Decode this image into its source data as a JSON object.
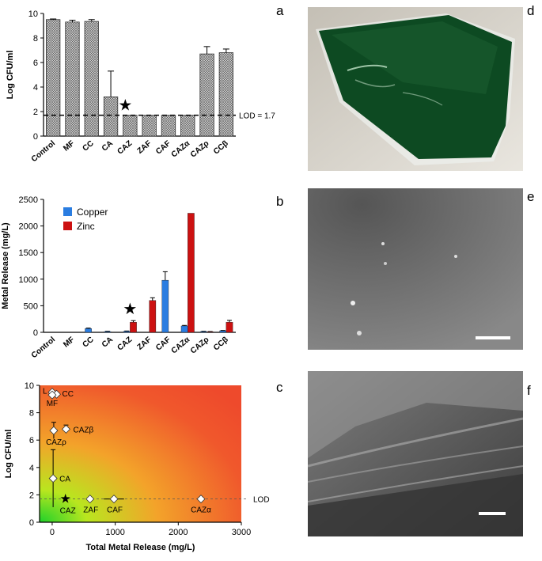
{
  "panel_labels": {
    "a": "a",
    "b": "b",
    "c": "c",
    "d": "d",
    "e": "e",
    "f": "f"
  },
  "colors": {
    "bar_fill": "#c9c9c9",
    "copper": "#2a7de1",
    "zinc": "#cc1111",
    "film_green": "#0d4a22",
    "sem_gray": "#707070"
  },
  "chart_data": [
    {
      "panel": "a",
      "type": "bar",
      "ylabel": "Log CFU/ml",
      "ylim": [
        0,
        10
      ],
      "yticks": [
        "0",
        "2",
        "4",
        "6",
        "8",
        "10"
      ],
      "categories": [
        "Control",
        "MF",
        "CC",
        "CA",
        "CAZ",
        "ZAF",
        "CAF",
        "CAZα",
        "CAZρ",
        "CCβ"
      ],
      "values": [
        9.5,
        9.3,
        9.35,
        3.2,
        1.7,
        1.7,
        1.7,
        1.7,
        6.7,
        6.8
      ],
      "errors": [
        0.05,
        0.15,
        0.15,
        2.1,
        0,
        0,
        0,
        0,
        0.6,
        0.3
      ],
      "lod": 1.7,
      "lod_label": "LOD = 1.7",
      "star_category": "CAZ",
      "star_symbol": "★"
    },
    {
      "panel": "b",
      "type": "bar",
      "ylabel": "Metal Release (mg/L)",
      "ylim": [
        0,
        2500
      ],
      "yticks": [
        "0",
        "500",
        "1000",
        "1500",
        "2000",
        "2500"
      ],
      "categories": [
        "Control",
        "MF",
        "CC",
        "CA",
        "CAZ",
        "ZAF",
        "CAF",
        "CAZα",
        "CAZρ",
        "CCβ"
      ],
      "series": [
        {
          "name": "Copper",
          "color": "#2a7de1",
          "values": [
            0,
            0,
            70,
            15,
            20,
            0,
            980,
            120,
            15,
            30
          ],
          "errors": [
            0,
            0,
            10,
            5,
            5,
            0,
            160,
            10,
            5,
            5
          ]
        },
        {
          "name": "Zinc",
          "color": "#cc1111",
          "values": [
            0,
            0,
            0,
            0,
            190,
            600,
            0,
            2240,
            10,
            190
          ],
          "errors": [
            0,
            0,
            0,
            0,
            30,
            50,
            0,
            0,
            5,
            35
          ]
        }
      ],
      "legend_position": "top-left",
      "star_category": "CAZ",
      "star_symbol": "★"
    },
    {
      "panel": "c",
      "type": "scatter",
      "xlabel": "Total Metal Release (mg/L)",
      "ylabel": "Log CFU/ml",
      "xlim": [
        -200,
        3000
      ],
      "ylim": [
        0,
        10
      ],
      "xticks": [
        "0",
        "1000",
        "2000",
        "3000"
      ],
      "yticks": [
        "0",
        "2",
        "4",
        "6",
        "8",
        "10"
      ],
      "lod": 1.7,
      "lod_label": "LOD",
      "points": [
        {
          "label": "L",
          "x": 0,
          "y": 9.5,
          "xerr": 0,
          "yerr": 0
        },
        {
          "label": "CC",
          "x": 70,
          "y": 9.35,
          "xerr": 0,
          "yerr": 0
        },
        {
          "label": "MF",
          "x": 0,
          "y": 9.3,
          "xerr": 0,
          "yerr": 0
        },
        {
          "label": "CAZβ",
          "x": 220,
          "y": 6.8,
          "xerr": 40,
          "yerr": 0.3
        },
        {
          "label": "CAZρ",
          "x": 25,
          "y": 6.7,
          "xerr": 10,
          "yerr": 0.6
        },
        {
          "label": "CA",
          "x": 15,
          "y": 3.2,
          "xerr": 5,
          "yerr": 2.1
        },
        {
          "label": "CAZ",
          "x": 210,
          "y": 1.7,
          "xerr": 35,
          "yerr": 0,
          "star": true
        },
        {
          "label": "ZAF",
          "x": 600,
          "y": 1.7,
          "xerr": 50,
          "yerr": 0
        },
        {
          "label": "CAF",
          "x": 980,
          "y": 1.7,
          "xerr": 160,
          "yerr": 0
        },
        {
          "label": "CAZα",
          "x": 2360,
          "y": 1.7,
          "xerr": 10,
          "yerr": 0
        }
      ],
      "background": "gradient green (low release, low CFU) to red"
    }
  ]
}
